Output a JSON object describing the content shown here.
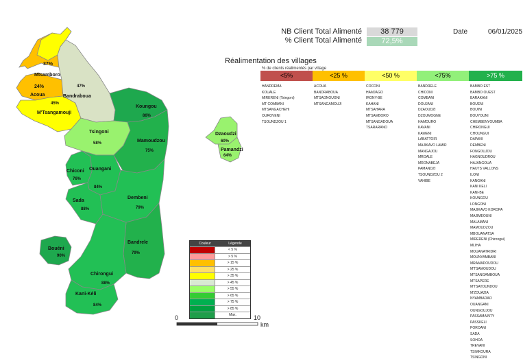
{
  "header": {
    "nb_label": "NB Client Total Alimenté",
    "nb_value": "38 779",
    "pct_label": "% Client Total Alimenté",
    "pct_value": "72,5%",
    "date_label": "Date",
    "date_value": "06/01/2025"
  },
  "section": {
    "title": "Réalimentation des villages",
    "subtitle": "% de clients réalimentés par village"
  },
  "categories": [
    {
      "label": "<5%",
      "color": "#c0504d",
      "text_color": "#000000"
    },
    {
      "label": "<25 %",
      "color": "#ffc000",
      "text_color": "#000000"
    },
    {
      "label": "<50 %",
      "color": "#ffff66",
      "text_color": "#000000"
    },
    {
      "label": "<75%",
      "color": "#92f07a",
      "text_color": "#000000"
    },
    {
      "label": ">75 %",
      "color": "#22b14c",
      "text_color": "#ffffff"
    }
  ],
  "villages": {
    "lt5": [
      "HANDREMA",
      "KOUALE",
      "MIRERENI (Tsingoni)",
      "MT COMBANI",
      "MTSANGACHEHI",
      "OUROVENI",
      "TSOUNDZOU 1"
    ],
    "lt25": [
      "ACOUA",
      "BANDRABOUA",
      "MTSAGNOUGNI",
      "MTSANGAMOUJI"
    ],
    "lt50": [
      "COCONI",
      "HAMJAGO",
      "IRONY-BE",
      "KAHANI",
      "MTSAHARA",
      "MTSAMBORO",
      "MTSANGADOUA",
      "TSARARANO"
    ],
    "lt75": [
      "BANDRELE",
      "CHICONI",
      "COMBANI",
      "DOUJANI",
      "DZAOUDZI",
      "DZOUMOGNE",
      "HAMOURO",
      "KAVANI",
      "KAWENI",
      "LABATTOIR",
      "MAJIKAVO LAMIR",
      "MANGAJOU",
      "MROALE",
      "MRONABEJA",
      "PAMANDZI",
      "TSOUNDZOU 2",
      "VAHIBE"
    ],
    "gt75": [
      "BAMBO EST",
      "BAMBO OUEST",
      "BARAKANI",
      "BOUENI",
      "BOUINI",
      "BOUYOUNI",
      "CHEMBENYOUMBA",
      "CHIRONGUI",
      "CHOUNGUI",
      "DAPANI",
      "DEMBENI",
      "FONGOUJOU",
      "HAGNOUDROU",
      "HAJANGOUA",
      "HAUTS VALLONS",
      "ILONI",
      "KANGANI",
      "KANI KELI",
      "KANI-BE",
      "KOUNGOU",
      "LONGONI",
      "MAJIKAVO KOROPA",
      "MAJIMEOUNI",
      "MALAMANI",
      "MAMOUDZOU",
      "MBOUANATSA",
      "MIRERENI (Chirongui)",
      "MLIHA",
      "MOUANATRIDRI",
      "MOUNYAMBANI",
      "MRAMADOUDOU",
      "M'TSAMOUDOU",
      "MTSANGAMBOUA",
      "MTSAPERE",
      "M'TSATOUNDOU",
      "M'ZOUAZIA",
      "NYAMBADAO",
      "OUANGANI",
      "OUNGOUJOU",
      "PASSAMAINTY",
      "PASSKELI",
      "POROANI",
      "SADA",
      "SOHOA",
      "TREVANI",
      "TSIMKOURA",
      "TSINGONI"
    ]
  },
  "legend": {
    "col_color": "Couleur",
    "col_legend": "Légende",
    "rows": [
      {
        "color": "#c00000",
        "label": "< 5 %"
      },
      {
        "color": "#ff9999",
        "label": "> 5 %"
      },
      {
        "color": "#ffc000",
        "label": "> 15 %"
      },
      {
        "color": "#ffe066",
        "label": "> 25 %"
      },
      {
        "color": "#ffff00",
        "label": "> 35 %"
      },
      {
        "color": "#d9ead3",
        "label": "> 45 %"
      },
      {
        "color": "#99ff66",
        "label": "> 55 %"
      },
      {
        "color": "#33cc33",
        "label": "> 65 %"
      },
      {
        "color": "#00b050",
        "label": "> 75 %"
      },
      {
        "color": "#00a040",
        "label": "> 85 %"
      },
      {
        "color": "#1e9e4a",
        "label": "Max."
      }
    ]
  },
  "scale": {
    "start": "0",
    "end": "10",
    "unit": "km"
  },
  "regions": {
    "mtsamboro": {
      "name": "Mtsamboro",
      "pct": "37%",
      "color": "#ffff00"
    },
    "mtsamboro_zone": {
      "name": "",
      "pct": "",
      "color": "#ffc000"
    },
    "acoua": {
      "name": "Acoua",
      "pct": "24%",
      "color": "#ffc000"
    },
    "mtsangamouji": {
      "name": "M'Tsangamouji",
      "pct": "45%",
      "color": "#ffff00"
    },
    "bandraboua": {
      "name": "Bandraboua",
      "pct": "47%",
      "color": "#d9e2c5"
    },
    "koungou": {
      "name": "Koungou",
      "pct": "86%",
      "color": "#1ea84e"
    },
    "tsingoni": {
      "name": "Tsingoni",
      "pct": "58%",
      "color": "#99f26e"
    },
    "mamoudzou": {
      "name": "Mamoudzou",
      "pct": "75%",
      "color": "#22b14c"
    },
    "chiconi": {
      "name": "Chiconi",
      "pct": "76%",
      "color": "#22c055"
    },
    "ouangani": {
      "name": "Ouangani",
      "pct": "84%",
      "color": "#22c055"
    },
    "sada": {
      "name": "Sada",
      "pct": "88%",
      "color": "#22c055"
    },
    "dembeni": {
      "name": "Dembeni",
      "pct": "79%",
      "color": "#22c055"
    },
    "bandrele": {
      "name": "Bandrele",
      "pct": "79%",
      "color": "#22b14c"
    },
    "boueni": {
      "name": "Bouéni",
      "pct": "90%",
      "color": "#1ea84e"
    },
    "chirongui": {
      "name": "Chirongui",
      "pct": "88%",
      "color": "#22c055"
    },
    "kanikeli": {
      "name": "Kani-Kéli",
      "pct": "84%",
      "color": "#22c055"
    },
    "dzaoudzi": {
      "name": "Dzaoudzi",
      "pct": "60%",
      "color": "#99f26e"
    },
    "pamandzi": {
      "name": "Pamandzi",
      "pct": "64%",
      "color": "#99f26e"
    }
  }
}
